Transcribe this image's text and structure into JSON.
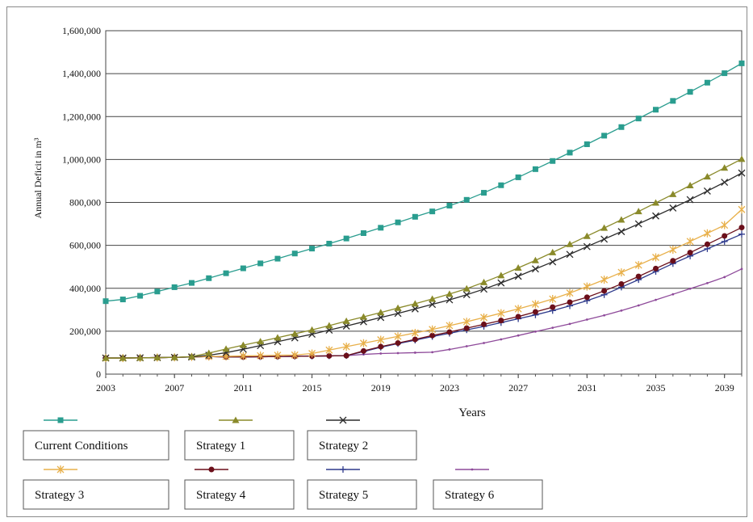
{
  "chart_data": {
    "type": "line",
    "ylabel": "Annual Deficit in m³",
    "xlabel": "Years",
    "x": [
      2003,
      2004,
      2005,
      2006,
      2007,
      2008,
      2009,
      2010,
      2011,
      2012,
      2013,
      2014,
      2015,
      2016,
      2017,
      2018,
      2019,
      2020,
      2021,
      2022,
      2023,
      2024,
      2025,
      2026,
      2027,
      2028,
      2029,
      2030,
      2031,
      2032,
      2033,
      2034,
      2035,
      2036,
      2037,
      2038,
      2039,
      2040
    ],
    "xticks": [
      "2003",
      "2007",
      "2011",
      "2015",
      "2019",
      "2023",
      "2027",
      "2031",
      "2035",
      "2039"
    ],
    "yticks": [
      "0",
      "200,000",
      "400,000",
      "600,000",
      "800,000",
      "1,000,000",
      "1,200,000",
      "1,400,000",
      "1,600,000"
    ],
    "ylim": [
      0,
      1600000
    ],
    "xlim": [
      2003,
      2040
    ],
    "grid": "horizontal",
    "series": [
      {
        "name": "Current Conditions",
        "color": "#2a9d8f",
        "marker": "square",
        "values": [
          340000,
          348000,
          365000,
          385000,
          405000,
          425000,
          447000,
          470000,
          493000,
          516000,
          538000,
          562000,
          585000,
          608000,
          632000,
          657000,
          682000,
          707000,
          733000,
          758000,
          785000,
          812000,
          845000,
          880000,
          917000,
          955000,
          993000,
          1032000,
          1071000,
          1111000,
          1151000,
          1191000,
          1232000,
          1273000,
          1315000,
          1358000,
          1402000,
          1448000
        ]
      },
      {
        "name": "Strategy 1",
        "color": "#8a8a2a",
        "marker": "triangle",
        "values": [
          75000,
          75000,
          76000,
          77000,
          78000,
          82000,
          98000,
          117000,
          135000,
          152000,
          170000,
          188000,
          206000,
          226000,
          247000,
          267000,
          287000,
          308000,
          328000,
          350000,
          373000,
          398000,
          428000,
          460000,
          495000,
          530000,
          567000,
          605000,
          643000,
          681000,
          719000,
          758000,
          798000,
          838000,
          879000,
          920000,
          961000,
          1002000
        ]
      },
      {
        "name": "Strategy 2",
        "color": "#2b2b2b",
        "marker": "x",
        "values": [
          75000,
          75000,
          76000,
          77000,
          78000,
          80000,
          88000,
          100000,
          116000,
          133000,
          151000,
          169000,
          186000,
          205000,
          224000,
          244000,
          264000,
          283000,
          304000,
          325000,
          346000,
          370000,
          396000,
          425000,
          456000,
          490000,
          523000,
          558000,
          594000,
          629000,
          664000,
          700000,
          737000,
          774000,
          813000,
          853000,
          894000,
          937000
        ]
      },
      {
        "name": "Strategy 3",
        "color": "#e8b04a",
        "marker": "asterisk",
        "values": [
          75000,
          75000,
          76000,
          77000,
          78000,
          80000,
          82000,
          83000,
          85000,
          86000,
          88000,
          89000,
          96000,
          112000,
          128000,
          144000,
          160000,
          176000,
          192000,
          208000,
          226000,
          244000,
          264000,
          284000,
          304000,
          326000,
          350000,
          378000,
          408000,
          440000,
          474000,
          508000,
          544000,
          580000,
          618000,
          656000,
          694000,
          767000
        ]
      },
      {
        "name": "Strategy 4",
        "color": "#6b0f1a",
        "marker": "circle",
        "values": [
          75000,
          75000,
          76000,
          77000,
          78000,
          80000,
          82000,
          80000,
          80000,
          81000,
          82000,
          83000,
          84000,
          85000,
          86000,
          108000,
          128000,
          145000,
          162000,
          180000,
          196000,
          214000,
          232000,
          250000,
          268000,
          290000,
          312000,
          335000,
          358000,
          388000,
          420000,
          455000,
          492000,
          528000,
          566000,
          605000,
          644000,
          683000
        ]
      },
      {
        "name": "Strategy 5",
        "color": "#2e3a8c",
        "marker": "plus",
        "values": [
          75000,
          75000,
          76000,
          77000,
          78000,
          80000,
          82000,
          80000,
          80000,
          81000,
          82000,
          83000,
          84000,
          85000,
          86000,
          105000,
          125000,
          142000,
          158000,
          175000,
          190000,
          206000,
          222000,
          240000,
          258000,
          276000,
          296000,
          318000,
          342000,
          370000,
          405000,
          440000,
          478000,
          515000,
          550000,
          584000,
          618000,
          652000
        ]
      },
      {
        "name": "Strategy 6",
        "color": "#8e4a9a",
        "marker": "dash",
        "values": [
          75000,
          75000,
          76000,
          77000,
          78000,
          80000,
          82000,
          80000,
          80000,
          81000,
          82000,
          83000,
          84000,
          85000,
          86000,
          92000,
          96000,
          98000,
          100000,
          102000,
          115000,
          130000,
          145000,
          162000,
          180000,
          198000,
          216000,
          234000,
          254000,
          274000,
          296000,
          320000,
          346000,
          372000,
          398000,
          424000,
          452000,
          490000
        ]
      }
    ]
  }
}
